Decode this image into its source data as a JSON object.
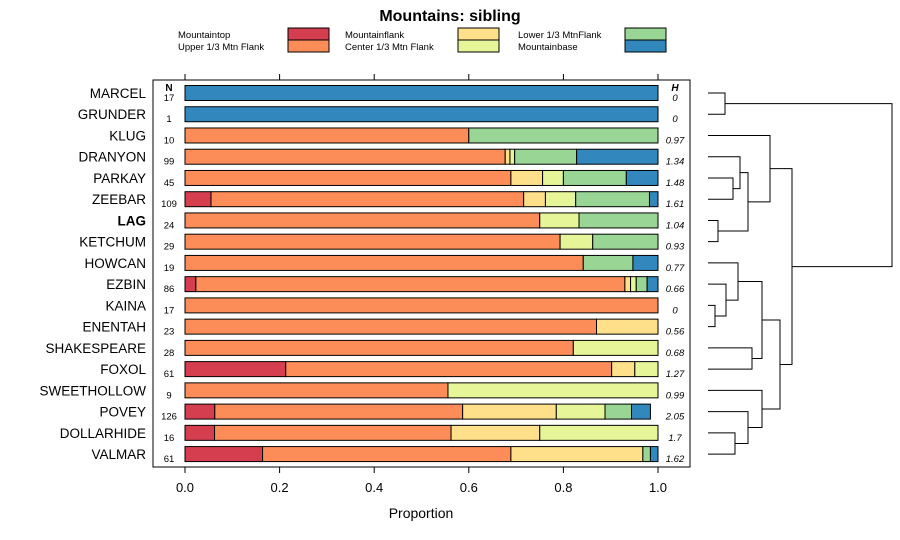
{
  "chart_data": {
    "type": "bar",
    "orientation": "horizontal",
    "stacked": true,
    "title": "Mountains: sibling",
    "xlabel": "Proportion",
    "xlim": [
      0,
      1
    ],
    "xticks": [
      "0.0",
      "0.2",
      "0.4",
      "0.6",
      "0.8",
      "1.0"
    ],
    "n_header": "N",
    "h_header": "H",
    "highlight": "LAG",
    "legend": [
      {
        "name": "Mountaintop",
        "color": "#d53e4f"
      },
      {
        "name": "Upper 1/3 Mtn Flank",
        "color": "#fc8d59"
      },
      {
        "name": "Mountainflank",
        "color": "#fee08b"
      },
      {
        "name": "Center 1/3 Mtn Flank",
        "color": "#e6f598"
      },
      {
        "name": "Lower 1/3 MtnFlank",
        "color": "#99d594"
      },
      {
        "name": "Mountainbase",
        "color": "#3288bd"
      }
    ],
    "rows": [
      {
        "label": "MARCEL",
        "n": "17",
        "h": "0",
        "values": [
          0,
          0,
          0,
          0,
          0,
          1.0
        ]
      },
      {
        "label": "GRUNDER",
        "n": "1",
        "h": "0",
        "values": [
          0,
          0,
          0,
          0,
          0,
          1.0
        ]
      },
      {
        "label": "KLUG",
        "n": "10",
        "h": "0.97",
        "values": [
          0,
          0.6,
          0,
          0,
          0.4,
          0
        ]
      },
      {
        "label": "DRANYON",
        "n": "99",
        "h": "1.34",
        "values": [
          0,
          0.677,
          0.01,
          0.01,
          0.131,
          0.172
        ]
      },
      {
        "label": "PARKAY",
        "n": "45",
        "h": "1.48",
        "values": [
          0,
          0.689,
          0.067,
          0.044,
          0.133,
          0.067
        ]
      },
      {
        "label": "ZEEBAR",
        "n": "109",
        "h": "1.61",
        "values": [
          0.055,
          0.661,
          0.046,
          0.064,
          0.156,
          0.018
        ]
      },
      {
        "label": "LAG",
        "n": "24",
        "h": "1.04",
        "values": [
          0,
          0.75,
          0,
          0.083,
          0.167,
          0
        ]
      },
      {
        "label": "KETCHUM",
        "n": "29",
        "h": "0.93",
        "values": [
          0,
          0.793,
          0,
          0.069,
          0.138,
          0
        ]
      },
      {
        "label": "HOWCAN",
        "n": "19",
        "h": "0.77",
        "values": [
          0,
          0.842,
          0,
          0,
          0.105,
          0.053
        ]
      },
      {
        "label": "EZBIN",
        "n": "86",
        "h": "0.66",
        "values": [
          0.023,
          0.907,
          0.012,
          0.012,
          0.023,
          0.023
        ]
      },
      {
        "label": "KAINA",
        "n": "17",
        "h": "0",
        "values": [
          0,
          1.0,
          0,
          0,
          0,
          0
        ]
      },
      {
        "label": "ENENTAH",
        "n": "23",
        "h": "0.56",
        "values": [
          0,
          0.87,
          0.13,
          0,
          0,
          0
        ]
      },
      {
        "label": "SHAKESPEARE",
        "n": "28",
        "h": "0.68",
        "values": [
          0,
          0.821,
          0,
          0.179,
          0,
          0
        ]
      },
      {
        "label": "FOXOL",
        "n": "61",
        "h": "1.27",
        "values": [
          0.213,
          0.689,
          0.049,
          0.049,
          0,
          0
        ]
      },
      {
        "label": "SWEETHOLLOW",
        "n": "9",
        "h": "0.99",
        "values": [
          0,
          0.556,
          0,
          0.444,
          0,
          0
        ]
      },
      {
        "label": "POVEY",
        "n": "126",
        "h": "2.05",
        "values": [
          0.063,
          0.524,
          0.198,
          0.103,
          0.056,
          0.04
        ]
      },
      {
        "label": "DOLLARHIDE",
        "n": "16",
        "h": "1.7",
        "values": [
          0.0625,
          0.5,
          0.1875,
          0.25,
          0,
          0
        ]
      },
      {
        "label": "VALMAR",
        "n": "61",
        "h": "1.62",
        "values": [
          0.164,
          0.525,
          0.279,
          0.0,
          0.016,
          0.016
        ]
      }
    ]
  }
}
